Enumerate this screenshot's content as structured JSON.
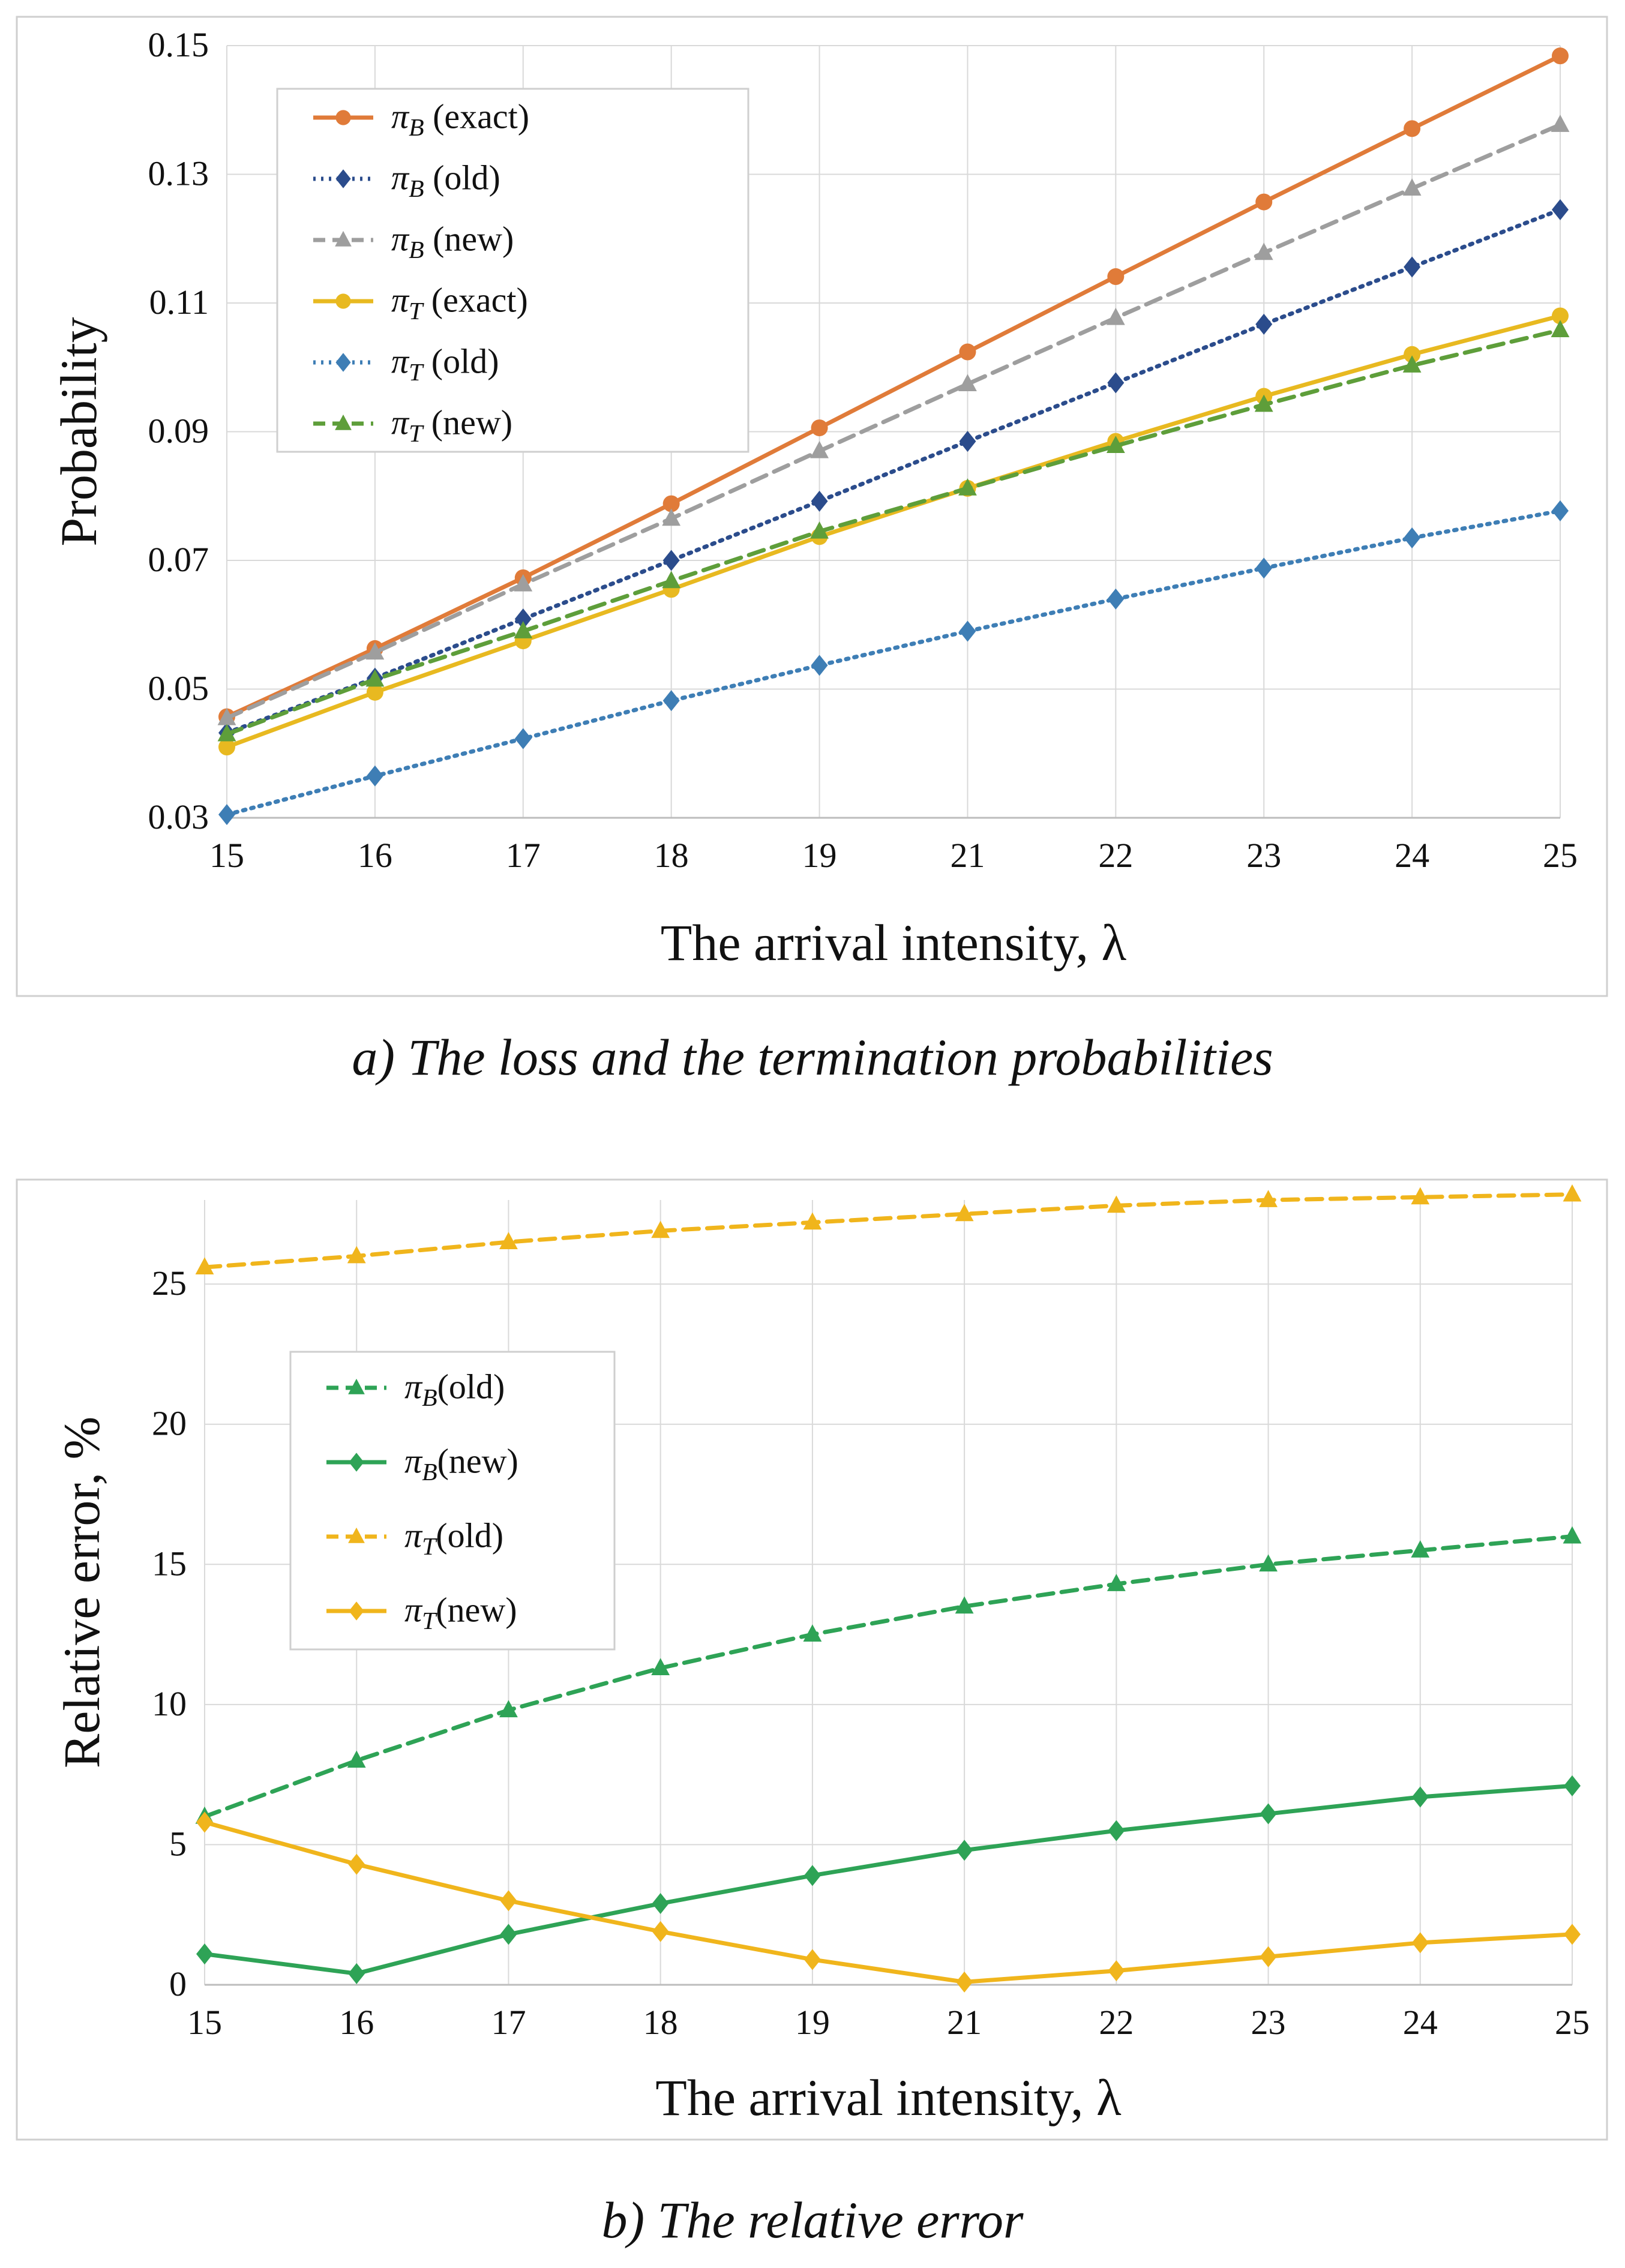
{
  "chart_data": [
    {
      "type": "line",
      "caption": "a) The loss and the termination probabilities",
      "xlabel": "The arrival intensity, λ",
      "ylabel": "Probability",
      "categories": [
        "15",
        "16",
        "17",
        "18",
        "19",
        "21",
        "22",
        "23",
        "24",
        "25"
      ],
      "ylim": [
        0.03,
        0.15
      ],
      "yticks": [
        "0.03",
        "0.05",
        "0.07",
        "0.09",
        "0.11",
        "0.13",
        "0.15"
      ],
      "grid": true,
      "legend_position": "top-left",
      "series": [
        {
          "name": "π",
          "sub": "B",
          "suffix": " (exact)",
          "style": "solid",
          "marker": "circle",
          "color": "#E07B39",
          "values": [
            0.0457,
            0.0563,
            0.0673,
            0.0788,
            0.0906,
            0.1024,
            0.1141,
            0.1257,
            0.1371,
            0.1484
          ]
        },
        {
          "name": "π",
          "sub": "B",
          "suffix": " (old)",
          "style": "dotted",
          "marker": "diamond",
          "color": "#2B4C8C",
          "values": [
            0.0432,
            0.0517,
            0.0609,
            0.07,
            0.0792,
            0.0885,
            0.0976,
            0.1067,
            0.1156,
            0.1245
          ]
        },
        {
          "name": "π",
          "sub": "B",
          "suffix": " (new)",
          "style": "dashed",
          "marker": "triangle",
          "color": "#9E9E9E",
          "values": [
            0.0455,
            0.0557,
            0.0663,
            0.0765,
            0.087,
            0.0974,
            0.1077,
            0.1178,
            0.1278,
            0.1377
          ]
        },
        {
          "name": "π",
          "sub": "T",
          "suffix": " (exact)",
          "style": "solid",
          "marker": "circle",
          "color": "#E8B920",
          "values": [
            0.041,
            0.0495,
            0.0575,
            0.0655,
            0.0737,
            0.0812,
            0.0885,
            0.0955,
            0.102,
            0.108
          ]
        },
        {
          "name": "π",
          "sub": "T",
          "suffix": " (old)",
          "style": "dotted",
          "marker": "diamond",
          "color": "#3E7EB5",
          "values": [
            0.0305,
            0.0365,
            0.0423,
            0.0482,
            0.0537,
            0.059,
            0.064,
            0.0688,
            0.0735,
            0.0777
          ]
        },
        {
          "name": "π",
          "sub": "T",
          "suffix": " (new)",
          "style": "dashed",
          "marker": "triangle",
          "color": "#5E9E3A",
          "values": [
            0.043,
            0.0515,
            0.059,
            0.0668,
            0.0745,
            0.0812,
            0.0878,
            0.0942,
            0.1003,
            0.1058
          ]
        }
      ]
    },
    {
      "type": "line",
      "caption": "b) The relative error",
      "xlabel": "The arrival intensity, λ",
      "ylabel": "Relative error, %",
      "categories": [
        "15",
        "16",
        "17",
        "18",
        "19",
        "21",
        "22",
        "23",
        "24",
        "25"
      ],
      "ylim": [
        0,
        28
      ],
      "yticks": [
        "0",
        "5",
        "10",
        "15",
        "20",
        "25"
      ],
      "grid": true,
      "legend_position": "center-left",
      "series": [
        {
          "name": "π",
          "sub": "B",
          "suffix": "(old)",
          "style": "dashed",
          "marker": "triangle",
          "color": "#2EA356",
          "values": [
            6.0,
            8.0,
            9.8,
            11.3,
            12.5,
            13.5,
            14.3,
            15.0,
            15.5,
            16.0
          ]
        },
        {
          "name": "π",
          "sub": "B",
          "suffix": "(new)",
          "style": "solid",
          "marker": "diamond",
          "color": "#2EA356",
          "values": [
            1.1,
            0.4,
            1.8,
            2.9,
            3.9,
            4.8,
            5.5,
            6.1,
            6.7,
            7.1
          ]
        },
        {
          "name": "π",
          "sub": "T",
          "suffix": "(old)",
          "style": "dashed",
          "marker": "triangle",
          "color": "#F0B51C",
          "values": [
            25.6,
            26.0,
            26.5,
            26.9,
            27.2,
            27.5,
            27.8,
            28.0,
            28.1,
            28.2
          ]
        },
        {
          "name": "π",
          "sub": "T",
          "suffix": "(new)",
          "style": "solid",
          "marker": "diamond",
          "color": "#F0B51C",
          "values": [
            5.8,
            4.3,
            3.0,
            1.9,
            0.9,
            0.1,
            0.5,
            1.0,
            1.5,
            1.8
          ]
        }
      ]
    }
  ]
}
